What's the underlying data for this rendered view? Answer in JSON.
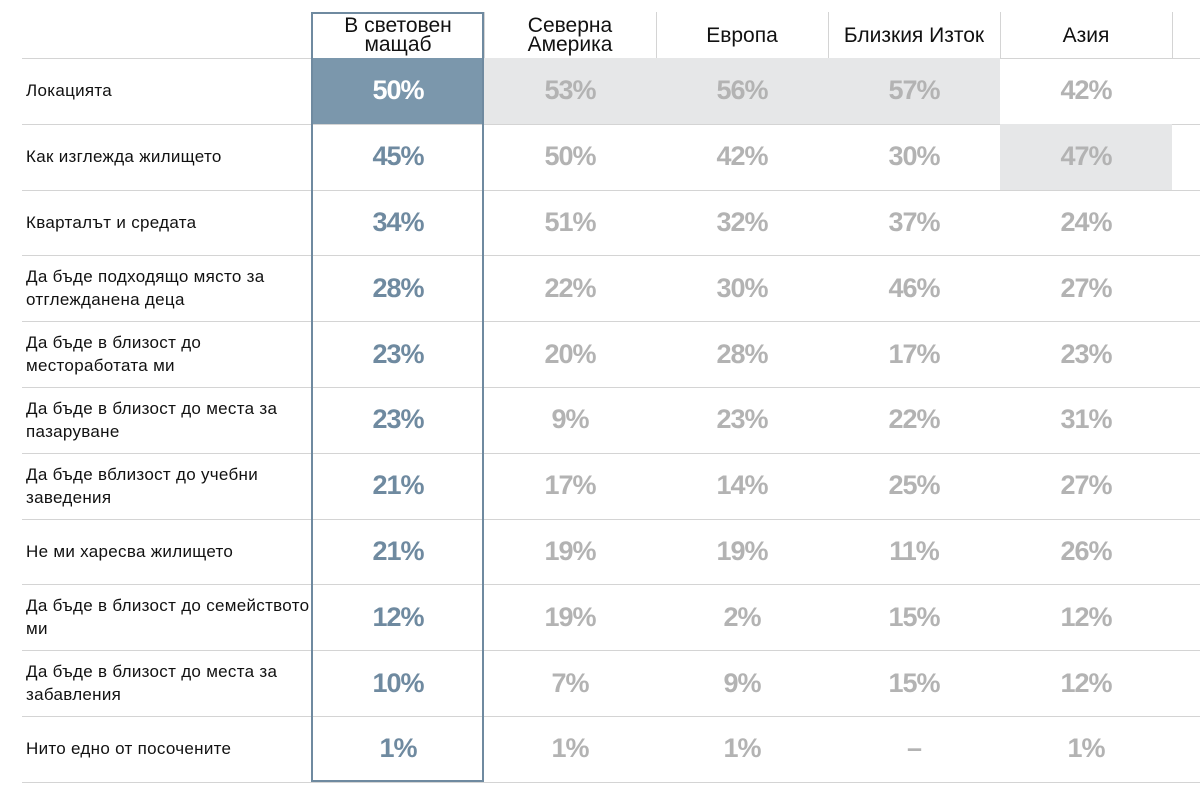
{
  "table": {
    "columns": [
      "В световен мащаб",
      "Северна Америка",
      "Европа",
      "Близкия Изток",
      "Азия"
    ],
    "rows": [
      {
        "label": "Локацията",
        "cells": [
          "50%",
          "53%",
          "56%",
          "57%",
          "42%"
        ]
      },
      {
        "label": "Как изглежда жилището",
        "cells": [
          "45%",
          "50%",
          "42%",
          "30%",
          "47%"
        ]
      },
      {
        "label": "Кварталът и средата",
        "cells": [
          "34%",
          "51%",
          "32%",
          "37%",
          "24%"
        ]
      },
      {
        "label": "Да бъде подходящо място за отглежданена деца",
        "cells": [
          "28%",
          "22%",
          "30%",
          "46%",
          "27%"
        ]
      },
      {
        "label": "Да бъде в близост до месторaботата ми",
        "cells": [
          "23%",
          "20%",
          "28%",
          "17%",
          "23%"
        ]
      },
      {
        "label": "Да бъде в близост до места за пазаруване",
        "cells": [
          "23%",
          "9%",
          "23%",
          "22%",
          "31%"
        ]
      },
      {
        "label": "Да бъде вблизост до учебни заведения",
        "cells": [
          "21%",
          "17%",
          "14%",
          "25%",
          "27%"
        ]
      },
      {
        "label": "Не ми харесва жилището",
        "cells": [
          "21%",
          "19%",
          "19%",
          "11%",
          "26%"
        ]
      },
      {
        "label": "Да бъде в близост до семейството ми",
        "cells": [
          "12%",
          "19%",
          "2%",
          "15%",
          "12%"
        ]
      },
      {
        "label": "Да бъде в близост до места за забавления",
        "cells": [
          "10%",
          "7%",
          "9%",
          "15%",
          "12%"
        ]
      },
      {
        "label": "Нито едно от посочените",
        "cells": [
          "1%",
          "1%",
          "1%",
          "–",
          "1%"
        ]
      }
    ]
  }
}
